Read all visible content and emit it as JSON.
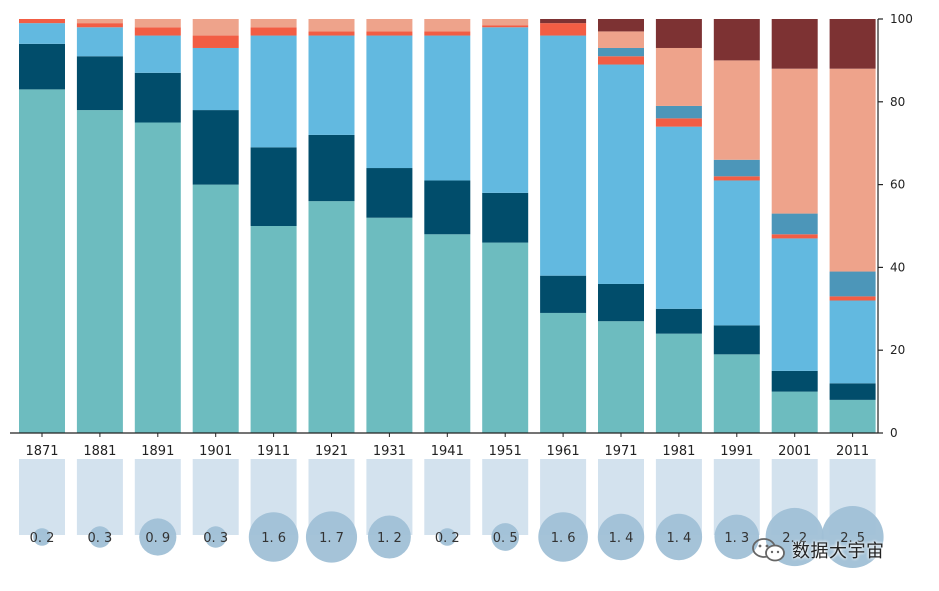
{
  "chart_data": {
    "type": "bar",
    "stacked": true,
    "categories": [
      "1871",
      "1881",
      "1891",
      "1901",
      "1911",
      "1921",
      "1931",
      "1941",
      "1951",
      "1961",
      "1971",
      "1981",
      "1991",
      "2001",
      "2011"
    ],
    "ylim": [
      0,
      100
    ],
    "yticks": [
      0,
      20,
      40,
      60,
      80,
      100
    ],
    "y_axis_side": "right",
    "series": [
      {
        "name": "series-1",
        "color": "#6dbcbf",
        "values": [
          83,
          78,
          75,
          60,
          50,
          56,
          52,
          48,
          46,
          29,
          27,
          24,
          19,
          10,
          8
        ]
      },
      {
        "name": "series-2",
        "color": "#014d6b",
        "values": [
          11,
          13,
          12,
          18,
          19,
          16,
          12,
          13,
          12,
          9,
          9,
          6,
          7,
          5,
          4
        ]
      },
      {
        "name": "series-3",
        "color": "#62b9e0",
        "values": [
          5,
          7,
          9,
          15,
          27,
          24,
          32,
          35,
          40,
          58,
          53,
          44,
          35,
          32,
          20
        ]
      },
      {
        "name": "series-4",
        "color": "#f25d44",
        "values": [
          1,
          1,
          2,
          3,
          2,
          1,
          1,
          1,
          0.5,
          3,
          2,
          2,
          1,
          1,
          1
        ]
      },
      {
        "name": "series-5",
        "color": "#4c96b9",
        "values": [
          0,
          0,
          0,
          0,
          0,
          0,
          0,
          0,
          0,
          0,
          2,
          3,
          4,
          5,
          6
        ]
      },
      {
        "name": "series-6",
        "color": "#eea38b",
        "values": [
          0,
          1,
          2,
          4,
          2,
          3,
          3,
          3,
          1.5,
          0,
          4,
          14,
          24,
          35,
          49
        ]
      },
      {
        "name": "series-7",
        "color": "#7d3233",
        "values": [
          0,
          0,
          0,
          0,
          0,
          0,
          0,
          0,
          0,
          1,
          3,
          7,
          10,
          12,
          12
        ]
      }
    ],
    "bubbles": {
      "color": "#a0c0d6",
      "stem_color": "#d3e2ee",
      "values": [
        0.2,
        0.3,
        0.9,
        0.3,
        1.6,
        1.7,
        1.2,
        0.2,
        0.5,
        1.6,
        1.4,
        1.4,
        1.3,
        2.2,
        2.5
      ],
      "labels": [
        "0. 2",
        "0. 3",
        "0. 9",
        "0. 3",
        "1. 6",
        "1. 7",
        "1. 2",
        "0. 2",
        "0. 5",
        "1. 6",
        "1. 4",
        "1. 4",
        "1. 3",
        "2. 2",
        "2. 5"
      ]
    }
  },
  "watermark": {
    "text": "数据大宇宙",
    "icon": "wechat-icon"
  }
}
